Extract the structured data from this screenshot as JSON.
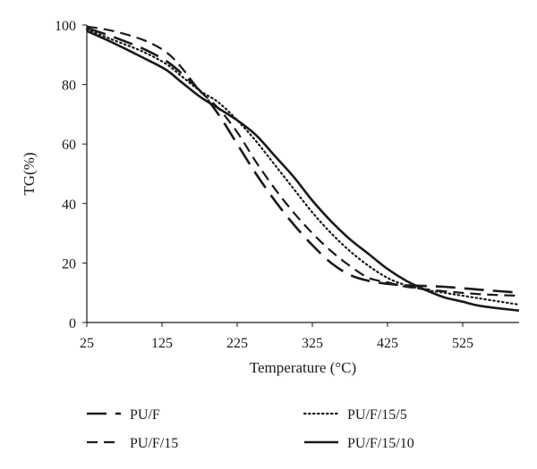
{
  "chart_data": {
    "type": "line",
    "xlabel": "Temperature (°C)",
    "ylabel": "TG(%)",
    "xlim": [
      25,
      600
    ],
    "ylim": [
      0,
      100
    ],
    "xticks": [
      25,
      125,
      225,
      325,
      425,
      525
    ],
    "yticks": [
      0,
      20,
      40,
      60,
      80,
      100
    ],
    "grid": false,
    "legend_position": "bottom",
    "series": [
      {
        "name": "PU/F",
        "style": "long-dash",
        "points": [
          [
            25,
            99
          ],
          [
            60,
            96
          ],
          [
            100,
            92
          ],
          [
            130,
            88
          ],
          [
            150,
            84
          ],
          [
            175,
            78
          ],
          [
            200,
            70
          ],
          [
            225,
            60
          ],
          [
            250,
            50
          ],
          [
            275,
            41
          ],
          [
            300,
            33
          ],
          [
            325,
            26
          ],
          [
            350,
            20
          ],
          [
            375,
            16
          ],
          [
            400,
            14
          ],
          [
            425,
            13
          ],
          [
            450,
            12.5
          ],
          [
            500,
            12
          ],
          [
            550,
            11
          ],
          [
            600,
            10
          ]
        ]
      },
      {
        "name": "PU/F/15",
        "style": "dash",
        "points": [
          [
            25,
            99.5
          ],
          [
            60,
            98
          ],
          [
            100,
            95
          ],
          [
            130,
            91
          ],
          [
            150,
            86
          ],
          [
            175,
            78
          ],
          [
            200,
            72
          ],
          [
            225,
            64
          ],
          [
            250,
            54
          ],
          [
            275,
            45
          ],
          [
            300,
            37
          ],
          [
            325,
            30
          ],
          [
            350,
            24
          ],
          [
            375,
            19
          ],
          [
            400,
            15
          ],
          [
            425,
            13.5
          ],
          [
            450,
            12
          ],
          [
            500,
            10.5
          ],
          [
            550,
            9.5
          ],
          [
            600,
            9
          ]
        ]
      },
      {
        "name": "PU/F/15/5",
        "style": "dotted",
        "points": [
          [
            25,
            98.5
          ],
          [
            60,
            95
          ],
          [
            100,
            91
          ],
          [
            130,
            87
          ],
          [
            150,
            83
          ],
          [
            175,
            78
          ],
          [
            200,
            74
          ],
          [
            225,
            68
          ],
          [
            250,
            61
          ],
          [
            275,
            53
          ],
          [
            300,
            45
          ],
          [
            325,
            37
          ],
          [
            350,
            30
          ],
          [
            375,
            24
          ],
          [
            400,
            19
          ],
          [
            425,
            15
          ],
          [
            450,
            12.5
          ],
          [
            475,
            11
          ],
          [
            500,
            10
          ],
          [
            550,
            8
          ],
          [
            600,
            6
          ]
        ]
      },
      {
        "name": "PU/F/15/10",
        "style": "solid",
        "points": [
          [
            25,
            98
          ],
          [
            60,
            94
          ],
          [
            100,
            89
          ],
          [
            130,
            85
          ],
          [
            150,
            81
          ],
          [
            175,
            76
          ],
          [
            200,
            72
          ],
          [
            225,
            68
          ],
          [
            250,
            63
          ],
          [
            275,
            56
          ],
          [
            300,
            49
          ],
          [
            325,
            41
          ],
          [
            350,
            34
          ],
          [
            375,
            28
          ],
          [
            400,
            23
          ],
          [
            425,
            18
          ],
          [
            450,
            14
          ],
          [
            475,
            11
          ],
          [
            500,
            8.5
          ],
          [
            525,
            7
          ],
          [
            550,
            5.5
          ],
          [
            600,
            4
          ]
        ]
      }
    ]
  }
}
